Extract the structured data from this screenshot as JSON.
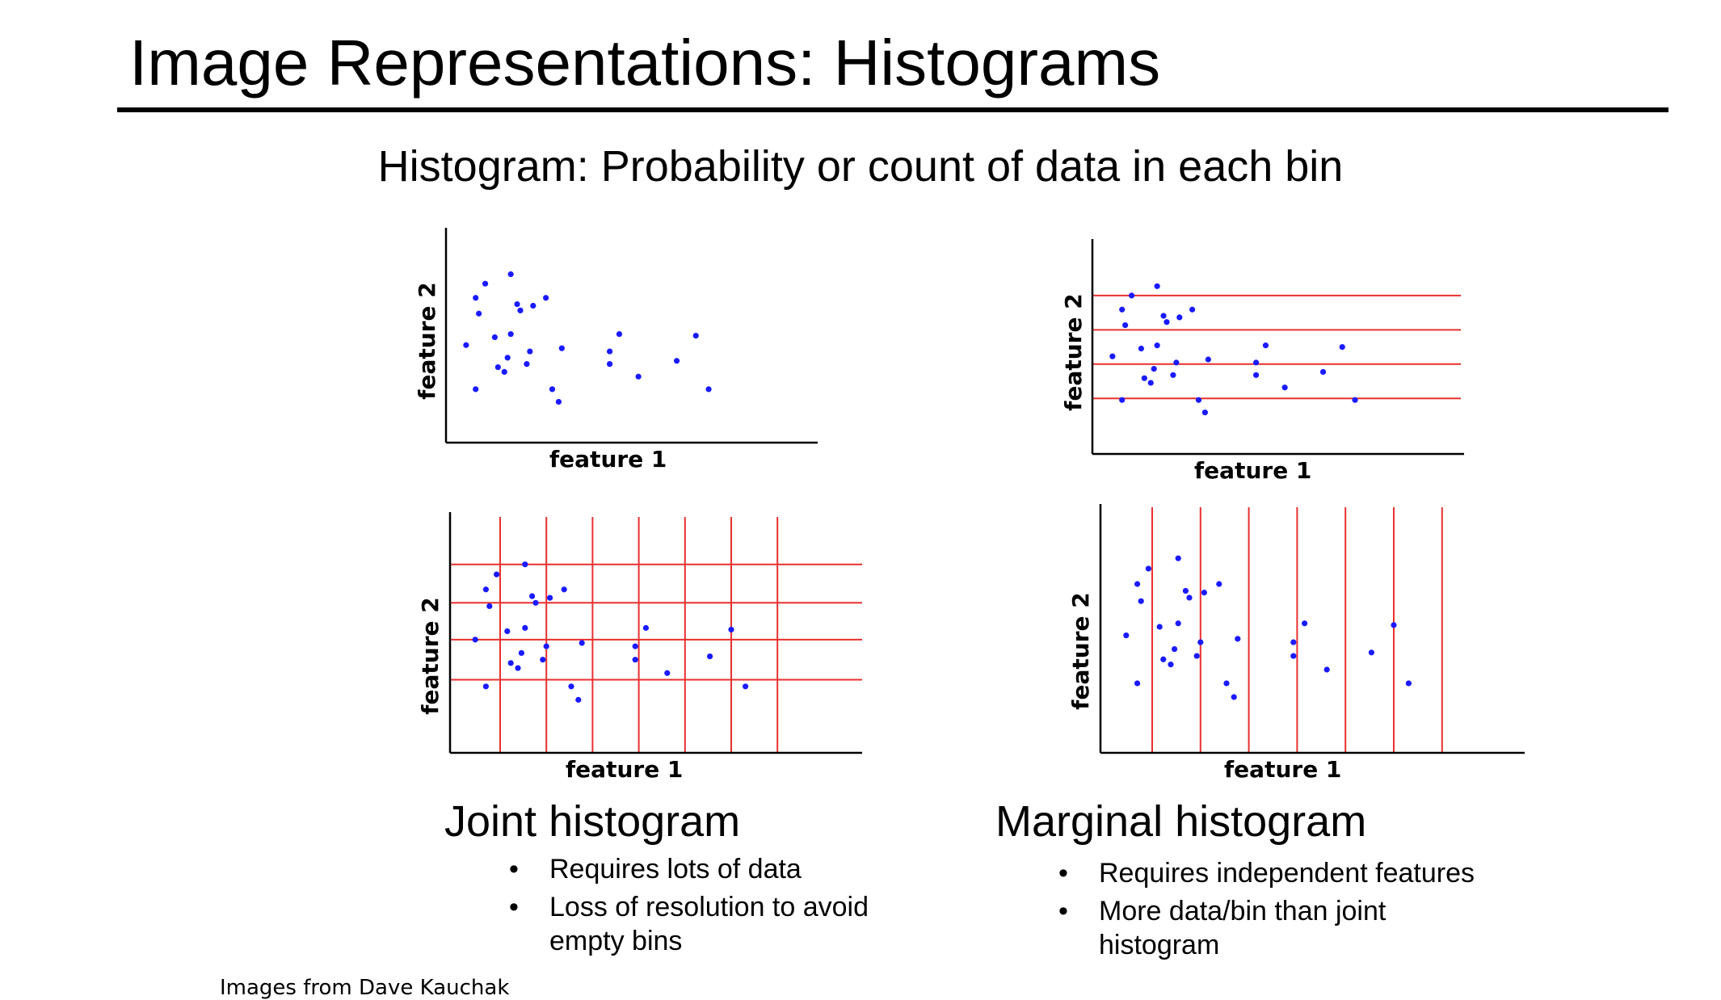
{
  "slide": {
    "title": "Image Representations: Histograms",
    "subtitle": "Histogram: Probability or count of data in each bin",
    "credit": "Images from Dave Kauchak"
  },
  "joint": {
    "caption": "Joint histogram",
    "bullets": [
      "Requires lots of data",
      "Loss of resolution to avoid empty bins"
    ]
  },
  "marginal": {
    "caption": "Marginal histogram",
    "bullets": [
      "Requires independent features",
      "More data/bin than joint histogram"
    ]
  },
  "bullet_glyph": "•",
  "colors": {
    "points": "#1a1aff",
    "bins": "#e8302f",
    "axes": "#000000"
  },
  "chart_data": [
    {
      "type": "scatter",
      "xlabel": "feature 1",
      "ylabel": "feature 2",
      "bins": "none",
      "x": [
        3,
        6,
        9,
        7,
        6,
        15,
        17,
        19,
        20,
        12,
        23,
        32,
        33,
        28,
        17,
        13,
        16,
        22,
        30,
        48,
        51,
        57,
        48,
        69,
        79,
        75,
        24
      ],
      "y": [
        45,
        75,
        84,
        65,
        17,
        28,
        90,
        71,
        67,
        50,
        41,
        9,
        43,
        75,
        52,
        31,
        37,
        33,
        17,
        41,
        52,
        25,
        33,
        35,
        17,
        51,
        70
      ]
    },
    {
      "type": "scatter",
      "xlabel": "feature 1",
      "ylabel": "feature 2",
      "bins": "horizontal",
      "bin_lines": [
        18,
        40,
        62,
        84
      ],
      "x": [
        3,
        6,
        9,
        7,
        6,
        15,
        17,
        19,
        20,
        12,
        23,
        32,
        33,
        28,
        17,
        13,
        16,
        22,
        30,
        48,
        51,
        57,
        48,
        69,
        79,
        75,
        24
      ],
      "y": [
        45,
        75,
        84,
        65,
        17,
        28,
        90,
        71,
        67,
        50,
        41,
        9,
        43,
        75,
        52,
        31,
        37,
        33,
        17,
        41,
        52,
        25,
        33,
        35,
        17,
        51,
        70
      ]
    },
    {
      "type": "scatter",
      "xlabel": "feature 1",
      "ylabel": "feature 2",
      "bins": "grid",
      "bin_lines_x": [
        10,
        23,
        36,
        49,
        62,
        75,
        88
      ],
      "bin_lines_y": [
        21,
        45,
        67,
        90
      ],
      "x": [
        3,
        6,
        9,
        7,
        6,
        15,
        17,
        19,
        20,
        12,
        23,
        32,
        33,
        28,
        17,
        13,
        16,
        22,
        30,
        48,
        51,
        57,
        48,
        69,
        79,
        75,
        24
      ],
      "y": [
        45,
        75,
        84,
        65,
        17,
        28,
        90,
        71,
        67,
        50,
        41,
        9,
        43,
        75,
        52,
        31,
        37,
        33,
        17,
        41,
        52,
        25,
        33,
        35,
        17,
        51,
        70
      ]
    },
    {
      "type": "scatter",
      "xlabel": "feature 1",
      "ylabel": "feature 2",
      "bins": "vertical",
      "bin_lines": [
        10,
        23,
        36,
        49,
        62,
        75,
        88
      ],
      "x": [
        3,
        6,
        9,
        7,
        6,
        15,
        17,
        19,
        20,
        12,
        23,
        32,
        33,
        28,
        17,
        13,
        16,
        22,
        30,
        48,
        51,
        57,
        48,
        69,
        79,
        75,
        24
      ],
      "y": [
        45,
        75,
        84,
        65,
        17,
        28,
        90,
        71,
        67,
        50,
        41,
        9,
        43,
        75,
        52,
        31,
        37,
        33,
        17,
        41,
        52,
        25,
        33,
        35,
        17,
        51,
        70
      ]
    }
  ]
}
